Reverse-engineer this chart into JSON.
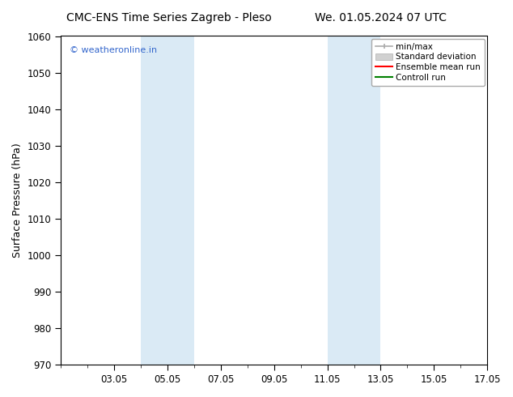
{
  "title_left": "CMC-ENS Time Series Zagreb - Pleso",
  "title_right": "We. 01.05.2024 07 UTC",
  "ylabel": "Surface Pressure (hPa)",
  "ylim": [
    970,
    1060
  ],
  "yticks": [
    970,
    980,
    990,
    1000,
    1010,
    1020,
    1030,
    1040,
    1050,
    1060
  ],
  "x_min": 1,
  "x_max": 17,
  "xtick_labels": [
    "03.05",
    "05.05",
    "07.05",
    "09.05",
    "11.05",
    "13.05",
    "15.05",
    "17.05"
  ],
  "xtick_positions": [
    3,
    5,
    7,
    9,
    11,
    13,
    15,
    17
  ],
  "shaded_regions": [
    {
      "x_start": 4.0,
      "x_end": 6.0
    },
    {
      "x_start": 11.0,
      "x_end": 13.0
    }
  ],
  "shaded_color": "#daeaf5",
  "watermark_text": "© weatheronline.in",
  "watermark_color": "#3366cc",
  "bg_color": "#ffffff",
  "title_fontsize": 10,
  "tick_fontsize": 8.5,
  "ylabel_fontsize": 9,
  "legend_fontsize": 7.5
}
